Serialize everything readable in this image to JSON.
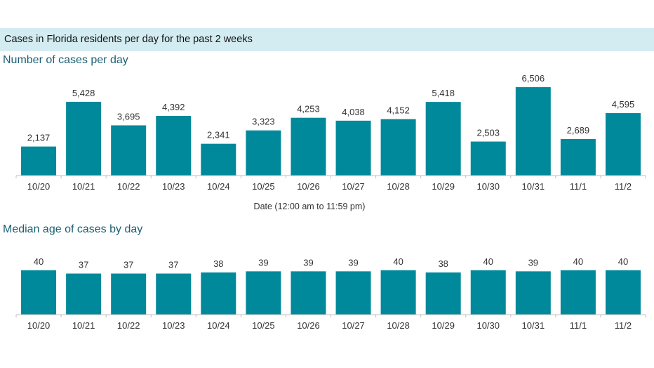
{
  "header": {
    "title": "Cases in Florida residents per day for the past 2 weeks"
  },
  "colors": {
    "bar": "#00899a",
    "header_bg": "#d3ecf1",
    "section_title": "#1b5f74"
  },
  "chart_data": [
    {
      "type": "bar",
      "title": "Number of cases per day",
      "xlabel": "Date (12:00 am to 11:59 pm)",
      "ylabel": "",
      "categories": [
        "10/20",
        "10/21",
        "10/22",
        "10/23",
        "10/24",
        "10/25",
        "10/26",
        "10/27",
        "10/28",
        "10/29",
        "10/30",
        "10/31",
        "11/1",
        "11/2"
      ],
      "values": [
        2137,
        5428,
        3695,
        4392,
        2341,
        3323,
        4253,
        4038,
        4152,
        5418,
        2503,
        6506,
        2689,
        4595
      ],
      "value_labels": [
        "2,137",
        "5,428",
        "3,695",
        "4,392",
        "2,341",
        "3,323",
        "4,253",
        "4,038",
        "4,152",
        "5,418",
        "2,503",
        "6,506",
        "2,689",
        "4,595"
      ],
      "ylim": [
        0,
        7750
      ],
      "grid": false
    },
    {
      "type": "bar",
      "title": "Median age of cases by day",
      "xlabel": "",
      "ylabel": "",
      "categories": [
        "10/20",
        "10/21",
        "10/22",
        "10/23",
        "10/24",
        "10/25",
        "10/26",
        "10/27",
        "10/28",
        "10/29",
        "10/30",
        "10/31",
        "11/1",
        "11/2"
      ],
      "values": [
        40,
        37,
        37,
        37,
        38,
        39,
        39,
        39,
        40,
        38,
        40,
        39,
        40,
        40
      ],
      "value_labels": [
        "40",
        "37",
        "37",
        "37",
        "38",
        "39",
        "39",
        "39",
        "40",
        "38",
        "40",
        "39",
        "40",
        "40"
      ],
      "ylim": [
        0,
        62
      ],
      "grid": false
    }
  ]
}
